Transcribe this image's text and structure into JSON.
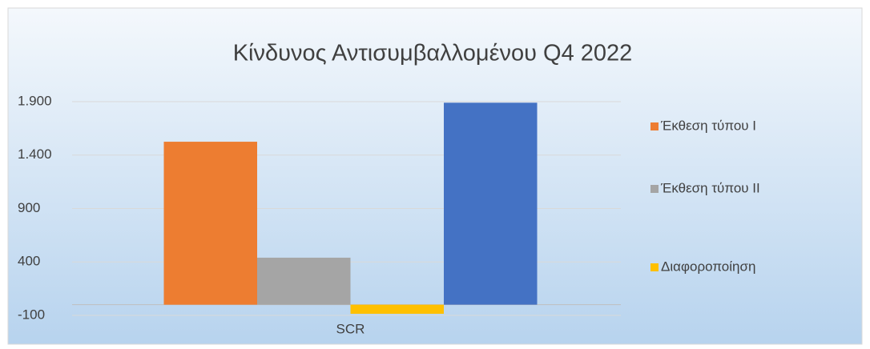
{
  "chart_data": {
    "type": "bar",
    "title": "Κίνδυνος Αντισυμβαλλομένου Q4 2022",
    "categories": [
      "SCR"
    ],
    "series": [
      {
        "name": "Έκθεση τύπου Ι",
        "color": "#ed7d31",
        "values": [
          1525
        ]
      },
      {
        "name": "Έκθεση τύπου ΙΙ",
        "color": "#a5a5a5",
        "values": [
          440
        ]
      },
      {
        "name": "Διαφοροποίηση",
        "color": "#ffc000",
        "values": [
          -85
        ]
      },
      {
        "color": "#4472c4",
        "values": [
          1890
        ]
      }
    ],
    "ylim": [
      -100,
      1900
    ],
    "yticks": [
      -100,
      400,
      900,
      {
        "value": 1400,
        "label": "1.400"
      },
      {
        "value": 1900,
        "label": "1.900"
      }
    ],
    "grid": true,
    "legend": "right"
  }
}
